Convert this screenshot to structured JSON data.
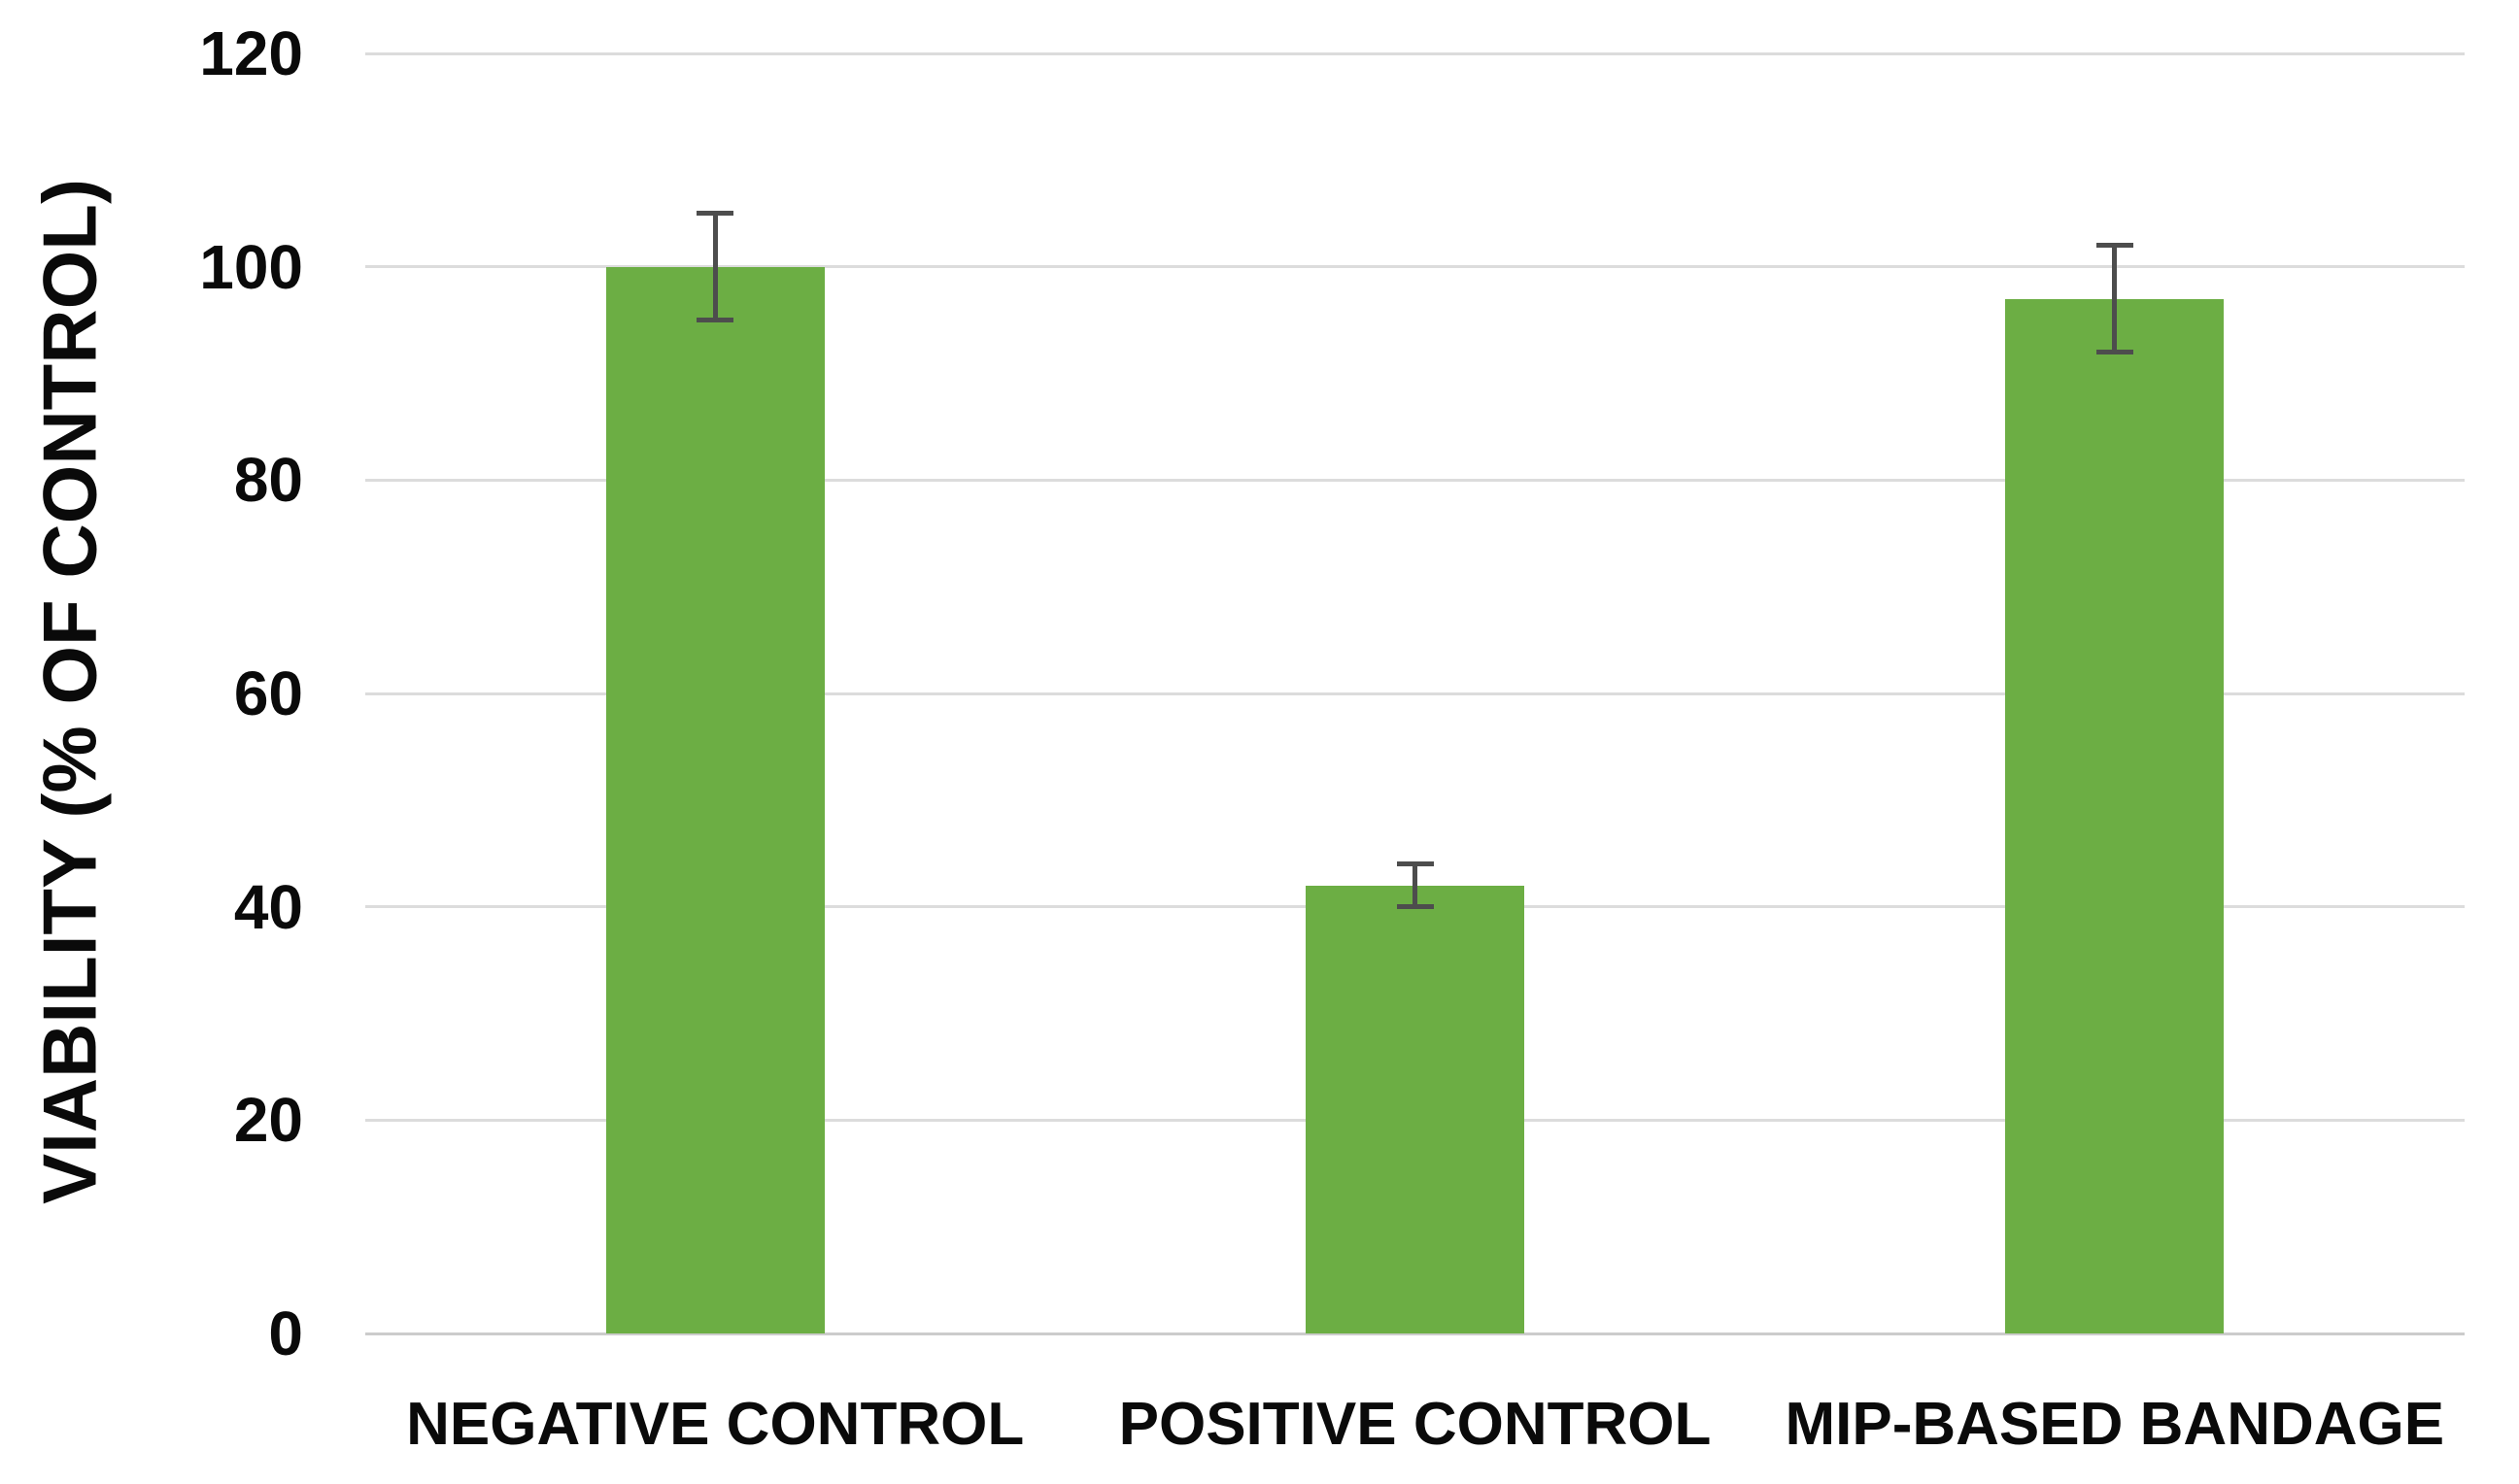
{
  "chart_data": {
    "type": "bar",
    "title": "",
    "xlabel": "",
    "ylabel": "VIABILITY (% OF CONTROL)",
    "categories": [
      "NEGATIVE CONTROL",
      "POSITIVE CONTROL",
      "MIP-BASED BANDAGE"
    ],
    "values": [
      100,
      42,
      97
    ],
    "error_bars": [
      5,
      2,
      5
    ],
    "ylim": [
      0,
      120
    ],
    "yticks": [
      0,
      20,
      40,
      60,
      80,
      100,
      120
    ],
    "grid": true,
    "legend": false,
    "colors": {
      "bar": "#6CAE44",
      "error_bar": "#4D4D4D",
      "gridline": "#DCDCDC",
      "axis_line": "#CCCCCC",
      "text": "#0A0A0A",
      "background": "#FFFFFF"
    }
  }
}
